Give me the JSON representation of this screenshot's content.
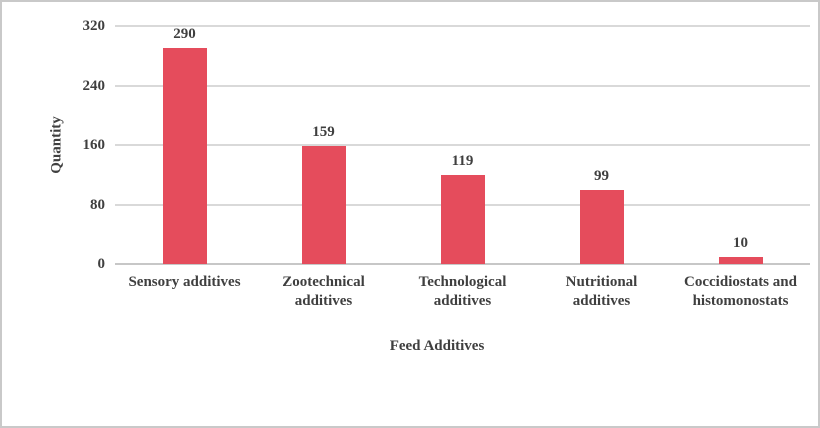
{
  "chart_data": {
    "type": "bar",
    "title": "",
    "categories": [
      "Sensory additives",
      "Zootechnical\nadditives",
      "Technological\nadditives",
      "Nutritional\nadditives",
      "Coccidiostats and\nhistomonostats"
    ],
    "values": [
      290,
      159,
      119,
      99,
      10
    ],
    "xlabel": "Feed Additives",
    "ylabel": "Quantity",
    "ylim": [
      0,
      320
    ],
    "yticks": [
      0,
      80,
      160,
      240,
      320
    ],
    "grid": "horizontal",
    "legend": "none",
    "data_labels": true,
    "colors": {
      "bar": "#e54c5c",
      "gridline": "#d9d9d9",
      "axis_line": "#c7c7c7",
      "text": "#3f3f3f",
      "frame_border": "#c9c9c9"
    }
  }
}
